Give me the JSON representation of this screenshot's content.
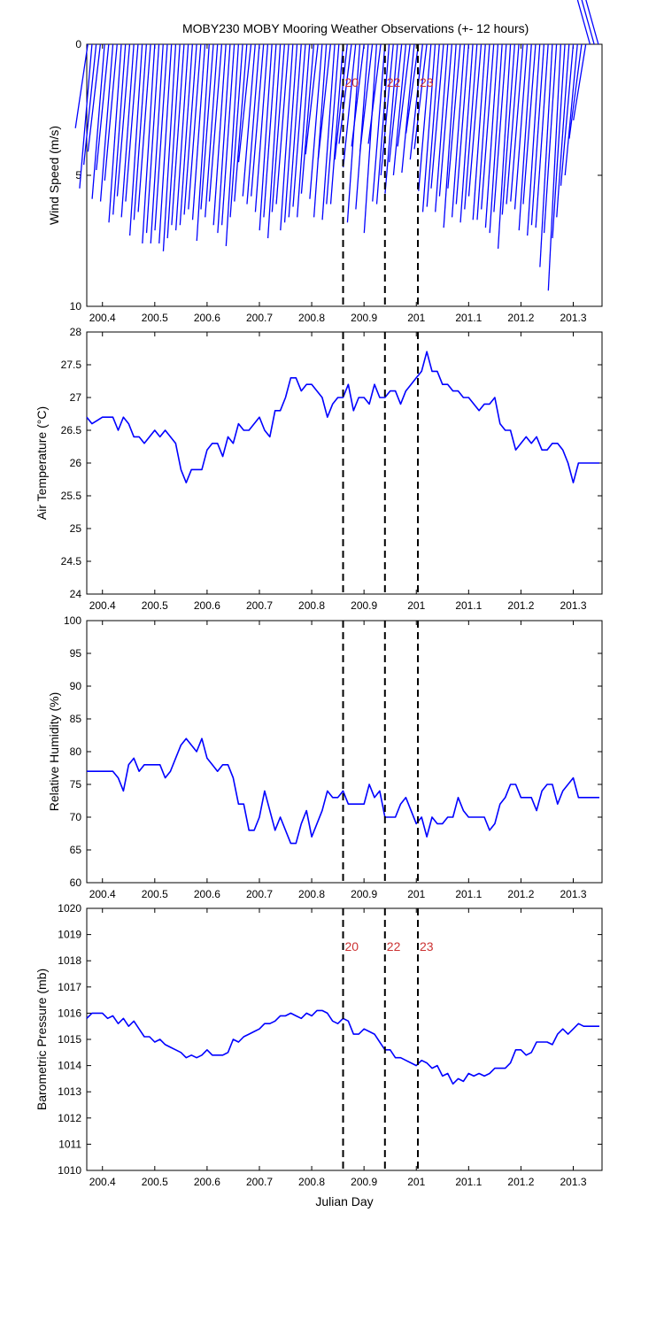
{
  "title": "MOBY230 MOBY Mooring Weather Observations (+- 12 hours)",
  "xlabel": "Julian Day",
  "colors": {
    "line": "#0000ff",
    "event": "#000000",
    "event_label": "#cc3333",
    "axes": "#000000"
  },
  "events": {
    "x": [
      200.86,
      200.94,
      201.003
    ],
    "labels": [
      "20",
      "22",
      "23"
    ]
  },
  "chart_data": [
    {
      "type": "quiver",
      "ylabel": "Wind Speed (m/s)",
      "xlim": [
        200.37,
        201.355
      ],
      "ylim": [
        10,
        0
      ],
      "yticks": [
        0,
        5,
        10
      ],
      "xticks": [
        200.4,
        200.5,
        200.6,
        200.7,
        200.8,
        200.9,
        201,
        201.1,
        201.2,
        201.3
      ],
      "xticklabels": [
        "200.4",
        "200.5",
        "200.6",
        "200.7",
        "200.8",
        "200.9",
        "201",
        "201.1",
        "201.2",
        "201.3"
      ],
      "x": [
        200.372,
        200.38,
        200.388,
        200.396,
        200.404,
        200.412,
        200.42,
        200.428,
        200.436,
        200.444,
        200.452,
        200.46,
        200.468,
        200.476,
        200.484,
        200.492,
        200.5,
        200.508,
        200.516,
        200.524,
        200.532,
        200.54,
        200.548,
        200.556,
        200.564,
        200.572,
        200.58,
        200.588,
        200.596,
        200.604,
        200.612,
        200.62,
        200.628,
        200.636,
        200.644,
        200.652,
        200.66,
        200.668,
        200.676,
        200.684,
        200.692,
        200.7,
        200.708,
        200.716,
        200.724,
        200.732,
        200.74,
        200.748,
        200.756,
        200.764,
        200.772,
        200.78,
        200.788,
        200.796,
        200.804,
        200.812,
        200.82,
        200.828,
        200.836,
        200.844,
        200.852,
        200.86,
        200.868,
        200.876,
        200.884,
        200.892,
        200.9,
        200.908,
        200.916,
        200.924,
        200.932,
        200.94,
        200.948,
        200.956,
        200.964,
        200.972,
        200.98,
        200.988,
        200.996,
        201.004,
        201.012,
        201.02,
        201.028,
        201.036,
        201.044,
        201.052,
        201.06,
        201.068,
        201.076,
        201.084,
        201.092,
        201.1,
        201.108,
        201.116,
        201.124,
        201.132,
        201.14,
        201.148,
        201.156,
        201.164,
        201.172,
        201.18,
        201.188,
        201.196,
        201.204,
        201.212,
        201.22,
        201.228,
        201.236,
        201.244,
        201.252,
        201.26,
        201.268,
        201.276,
        201.284,
        201.292,
        201.3,
        201.308,
        201.316,
        201.324,
        201.332,
        201.34,
        201.348
      ],
      "u": [
        0.04,
        0.04,
        0.04,
        0.04,
        0.04,
        0.04,
        0.04,
        0.04,
        0.04,
        0.04,
        0.04,
        0.04,
        0.04,
        0.04,
        0.04,
        0.04,
        0.04,
        0.04,
        0.04,
        0.04,
        0.04,
        0.04,
        0.04,
        0.04,
        0.04,
        0.04,
        0.04,
        0.04,
        0.04,
        0.04,
        0.04,
        0.04,
        0.04,
        0.04,
        0.04,
        0.04,
        0.04,
        0.04,
        0.04,
        0.04,
        0.04,
        0.04,
        0.04,
        0.04,
        0.04,
        0.04,
        0.04,
        0.04,
        0.04,
        0.04,
        0.04,
        0.04,
        0.04,
        0.04,
        0.04,
        0.04,
        0.04,
        0.04,
        0.04,
        0.04,
        0.04,
        0.04,
        0.04,
        0.04,
        0.04,
        0.04,
        0.04,
        0.04,
        0.04,
        0.04,
        0.04,
        0.04,
        0.04,
        0.04,
        0.04,
        0.04,
        0.04,
        0.04,
        0.04,
        0.04,
        0.04,
        0.04,
        0.04,
        0.04,
        0.04,
        0.04,
        0.04,
        0.04,
        0.04,
        0.04,
        0.04,
        0.04,
        0.04,
        0.04,
        0.04,
        0.04,
        0.04,
        0.04,
        0.04,
        0.04,
        0.04,
        0.04,
        0.04,
        0.04,
        0.04,
        0.04,
        0.04,
        0.04,
        0.04,
        0.04,
        0.04,
        0.04,
        0.04,
        0.04,
        0.04,
        0.04,
        0.04,
        0.04,
        0.04,
        0.04,
        0.04,
        0.04,
        0.04
      ],
      "speed": [
        3.2,
        5.5,
        4.6,
        4.1,
        5.9,
        4.8,
        6.0,
        5.2,
        6.8,
        6.5,
        5.8,
        6.6,
        6.0,
        7.3,
        6.7,
        6.4,
        7.6,
        7.2,
        7.6,
        7.1,
        7.6,
        7.9,
        7.4,
        6.9,
        7.1,
        6.9,
        6.5,
        6.3,
        6.7,
        7.5,
        6.3,
        6.6,
        6.0,
        6.9,
        7.2,
        6.9,
        7.7,
        6.6,
        6.0,
        4.5,
        5.8,
        6.1,
        5.8,
        6.4,
        7.1,
        6.6,
        7.4,
        6.4,
        6.1,
        7.1,
        6.8,
        6.6,
        6.2,
        6.6,
        5.7,
        4.2,
        5.9,
        6.6,
        4.4,
        6.7,
        6.1,
        6.1,
        4.4,
        3.8,
        4.7,
        6.8,
        3.9,
        6.3,
        4.1,
        7.2,
        3.8,
        6.0,
        6.1,
        5.0,
        5.7,
        4.5,
        5.0,
        3.9,
        4.9,
        3.4,
        4.4,
        4.0,
        5.6,
        6.4,
        6.2,
        5.5,
        6.4,
        5.8,
        7.0,
        5.5,
        6.6,
        6.1,
        6.8,
        6.3,
        5.8,
        6.7,
        6.7,
        6.3,
        7.0,
        7.2,
        6.4,
        7.8,
        6.5,
        6.1,
        6.0,
        6.3,
        7.1,
        6.1,
        7.3,
        6.9,
        7.0,
        8.5,
        7.2,
        9.4,
        7.4,
        6.6,
        5.4,
        5.0,
        3.6,
        2.9
      ]
    },
    {
      "type": "line",
      "ylabel": "Air Temperature (°C)",
      "xlim": [
        200.37,
        201.355
      ],
      "ylim": [
        24,
        28
      ],
      "yticks": [
        24,
        24.5,
        25,
        25.5,
        26,
        26.5,
        27,
        27.5,
        28
      ],
      "yticklabels": [
        "24",
        "24.5",
        "25",
        "25.5",
        "26",
        "26.5",
        "27",
        "27.5",
        "28"
      ],
      "xticks": [
        200.4,
        200.5,
        200.6,
        200.7,
        200.8,
        200.9,
        201,
        201.1,
        201.2,
        201.3
      ],
      "xticklabels": [
        "200.4",
        "200.5",
        "200.6",
        "200.7",
        "200.8",
        "200.9",
        "201",
        "201.1",
        "201.2",
        "201.3"
      ],
      "x": [
        200.37,
        200.38,
        200.39,
        200.4,
        200.41,
        200.42,
        200.43,
        200.44,
        200.45,
        200.46,
        200.47,
        200.48,
        200.49,
        200.5,
        200.51,
        200.52,
        200.53,
        200.54,
        200.55,
        200.56,
        200.57,
        200.58,
        200.59,
        200.6,
        200.61,
        200.62,
        200.63,
        200.64,
        200.65,
        200.66,
        200.67,
        200.68,
        200.69,
        200.7,
        200.71,
        200.72,
        200.73,
        200.74,
        200.75,
        200.76,
        200.77,
        200.78,
        200.79,
        200.8,
        200.81,
        200.82,
        200.83,
        200.84,
        200.85,
        200.86,
        200.87,
        200.88,
        200.89,
        200.9,
        200.91,
        200.92,
        200.93,
        200.94,
        200.95,
        200.96,
        200.97,
        200.98,
        200.99,
        201.0,
        201.01,
        201.02,
        201.03,
        201.04,
        201.05,
        201.06,
        201.07,
        201.08,
        201.09,
        201.1,
        201.11,
        201.12,
        201.13,
        201.14,
        201.15,
        201.16,
        201.17,
        201.18,
        201.19,
        201.2,
        201.21,
        201.22,
        201.23,
        201.24,
        201.25,
        201.26,
        201.27,
        201.28,
        201.29,
        201.3,
        201.31,
        201.32,
        201.33,
        201.34,
        201.35
      ],
      "y": [
        26.7,
        26.6,
        26.65,
        26.7,
        26.7,
        26.7,
        26.5,
        26.7,
        26.6,
        26.4,
        26.4,
        26.3,
        26.4,
        26.5,
        26.4,
        26.5,
        26.4,
        26.3,
        25.9,
        25.7,
        25.9,
        25.9,
        25.9,
        26.2,
        26.3,
        26.3,
        26.1,
        26.4,
        26.3,
        26.6,
        26.5,
        26.5,
        26.6,
        26.7,
        26.5,
        26.4,
        26.8,
        26.8,
        27.0,
        27.3,
        27.3,
        27.1,
        27.2,
        27.2,
        27.1,
        27.0,
        26.7,
        26.9,
        27.0,
        27.0,
        27.2,
        26.8,
        27.0,
        27.0,
        26.9,
        27.2,
        27.0,
        27.0,
        27.1,
        27.1,
        26.9,
        27.1,
        27.2,
        27.3,
        27.4,
        27.7,
        27.4,
        27.4,
        27.2,
        27.2,
        27.1,
        27.1,
        27.0,
        27.0,
        26.9,
        26.8,
        26.9,
        26.9,
        27.0,
        26.6,
        26.5,
        26.5,
        26.2,
        26.3,
        26.4,
        26.3,
        26.4,
        26.2,
        26.2,
        26.3,
        26.3,
        26.2,
        26.0,
        25.7,
        26.0,
        26.0,
        26.0,
        26.0,
        26.0
      ]
    },
    {
      "type": "line",
      "ylabel": "Relative Humidity (%)",
      "xlim": [
        200.37,
        201.355
      ],
      "ylim": [
        60,
        100
      ],
      "yticks": [
        60,
        65,
        70,
        75,
        80,
        85,
        90,
        95,
        100
      ],
      "yticklabels": [
        "60",
        "65",
        "70",
        "75",
        "80",
        "85",
        "90",
        "95",
        "100"
      ],
      "xticks": [
        200.4,
        200.5,
        200.6,
        200.7,
        200.8,
        200.9,
        201,
        201.1,
        201.2,
        201.3
      ],
      "xticklabels": [
        "200.4",
        "200.5",
        "200.6",
        "200.7",
        "200.8",
        "200.9",
        "201",
        "201.1",
        "201.2",
        "201.3"
      ],
      "x": [
        200.37,
        200.38,
        200.39,
        200.4,
        200.41,
        200.42,
        200.43,
        200.44,
        200.45,
        200.46,
        200.47,
        200.48,
        200.49,
        200.5,
        200.51,
        200.52,
        200.53,
        200.54,
        200.55,
        200.56,
        200.57,
        200.58,
        200.59,
        200.6,
        200.61,
        200.62,
        200.63,
        200.64,
        200.65,
        200.66,
        200.67,
        200.68,
        200.69,
        200.7,
        200.71,
        200.72,
        200.73,
        200.74,
        200.75,
        200.76,
        200.77,
        200.78,
        200.79,
        200.8,
        200.81,
        200.82,
        200.83,
        200.84,
        200.85,
        200.86,
        200.87,
        200.88,
        200.89,
        200.9,
        200.91,
        200.92,
        200.93,
        200.94,
        200.95,
        200.96,
        200.97,
        200.98,
        200.99,
        201.0,
        201.01,
        201.02,
        201.03,
        201.04,
        201.05,
        201.06,
        201.07,
        201.08,
        201.09,
        201.1,
        201.11,
        201.12,
        201.13,
        201.14,
        201.15,
        201.16,
        201.17,
        201.18,
        201.19,
        201.2,
        201.21,
        201.22,
        201.23,
        201.24,
        201.25,
        201.26,
        201.27,
        201.28,
        201.29,
        201.3,
        201.31,
        201.32,
        201.33,
        201.34,
        201.35
      ],
      "y": [
        77,
        77,
        77,
        77,
        77,
        77,
        76,
        74,
        78,
        79,
        77,
        78,
        78,
        78,
        78,
        76,
        77,
        79,
        81,
        82,
        81,
        80,
        82,
        79,
        78,
        77,
        78,
        78,
        76,
        72,
        72,
        68,
        68,
        70,
        74,
        71,
        68,
        70,
        68,
        66,
        66,
        69,
        71,
        67,
        69,
        71,
        74,
        73,
        73,
        74,
        72,
        72,
        72,
        72,
        75,
        73,
        74,
        70,
        70,
        70,
        72,
        73,
        71,
        69,
        70,
        67,
        70,
        69,
        69,
        70,
        70,
        73,
        71,
        70,
        70,
        70,
        70,
        68,
        69,
        72,
        73,
        75,
        75,
        73,
        73,
        73,
        71,
        74,
        75,
        75,
        72,
        74,
        75,
        76,
        73,
        73,
        73,
        73,
        73
      ]
    },
    {
      "type": "line",
      "ylabel": "Barometric Pressure (mb)",
      "xlim": [
        200.37,
        201.355
      ],
      "ylim": [
        1010,
        1020
      ],
      "yticks": [
        1010,
        1011,
        1012,
        1013,
        1014,
        1015,
        1016,
        1017,
        1018,
        1019,
        1020
      ],
      "yticklabels": [
        "1010",
        "1011",
        "1012",
        "1013",
        "1014",
        "1015",
        "1016",
        "1017",
        "1018",
        "1019",
        "1020"
      ],
      "xticks": [
        200.4,
        200.5,
        200.6,
        200.7,
        200.8,
        200.9,
        201,
        201.1,
        201.2,
        201.3
      ],
      "xticklabels": [
        "200.4",
        "200.5",
        "200.6",
        "200.7",
        "200.8",
        "200.9",
        "201",
        "201.1",
        "201.2",
        "201.3"
      ],
      "x": [
        200.37,
        200.38,
        200.39,
        200.4,
        200.41,
        200.42,
        200.43,
        200.44,
        200.45,
        200.46,
        200.47,
        200.48,
        200.49,
        200.5,
        200.51,
        200.52,
        200.53,
        200.54,
        200.55,
        200.56,
        200.57,
        200.58,
        200.59,
        200.6,
        200.61,
        200.62,
        200.63,
        200.64,
        200.65,
        200.66,
        200.67,
        200.68,
        200.69,
        200.7,
        200.71,
        200.72,
        200.73,
        200.74,
        200.75,
        200.76,
        200.77,
        200.78,
        200.79,
        200.8,
        200.81,
        200.82,
        200.83,
        200.84,
        200.85,
        200.86,
        200.87,
        200.88,
        200.89,
        200.9,
        200.91,
        200.92,
        200.93,
        200.94,
        200.95,
        200.96,
        200.97,
        200.98,
        200.99,
        201.0,
        201.01,
        201.02,
        201.03,
        201.04,
        201.05,
        201.06,
        201.07,
        201.08,
        201.09,
        201.1,
        201.11,
        201.12,
        201.13,
        201.14,
        201.15,
        201.16,
        201.17,
        201.18,
        201.19,
        201.2,
        201.21,
        201.22,
        201.23,
        201.24,
        201.25,
        201.26,
        201.27,
        201.28,
        201.29,
        201.3,
        201.31,
        201.32,
        201.33,
        201.34,
        201.35
      ],
      "y": [
        1015.8,
        1016.0,
        1016.0,
        1016.0,
        1015.8,
        1015.9,
        1015.6,
        1015.8,
        1015.5,
        1015.7,
        1015.4,
        1015.1,
        1015.1,
        1014.9,
        1015.0,
        1014.8,
        1014.7,
        1014.6,
        1014.5,
        1014.3,
        1014.4,
        1014.3,
        1014.4,
        1014.6,
        1014.4,
        1014.4,
        1014.4,
        1014.5,
        1015.0,
        1014.9,
        1015.1,
        1015.2,
        1015.3,
        1015.4,
        1015.6,
        1015.6,
        1015.7,
        1015.9,
        1015.9,
        1016.0,
        1015.9,
        1015.8,
        1016.0,
        1015.9,
        1016.1,
        1016.1,
        1016.0,
        1015.7,
        1015.6,
        1015.8,
        1015.7,
        1015.2,
        1015.2,
        1015.4,
        1015.3,
        1015.2,
        1014.9,
        1014.6,
        1014.6,
        1014.3,
        1014.3,
        1014.2,
        1014.1,
        1014.0,
        1014.2,
        1014.1,
        1013.9,
        1014.0,
        1013.6,
        1013.7,
        1013.3,
        1013.5,
        1013.4,
        1013.7,
        1013.6,
        1013.7,
        1013.6,
        1013.7,
        1013.9,
        1013.9,
        1013.9,
        1014.1,
        1014.6,
        1014.6,
        1014.4,
        1014.5,
        1014.9,
        1014.9,
        1014.9,
        1014.8,
        1015.2,
        1015.4,
        1015.2,
        1015.4,
        1015.6,
        1015.5,
        1015.5,
        1015.5,
        1015.5
      ]
    }
  ]
}
